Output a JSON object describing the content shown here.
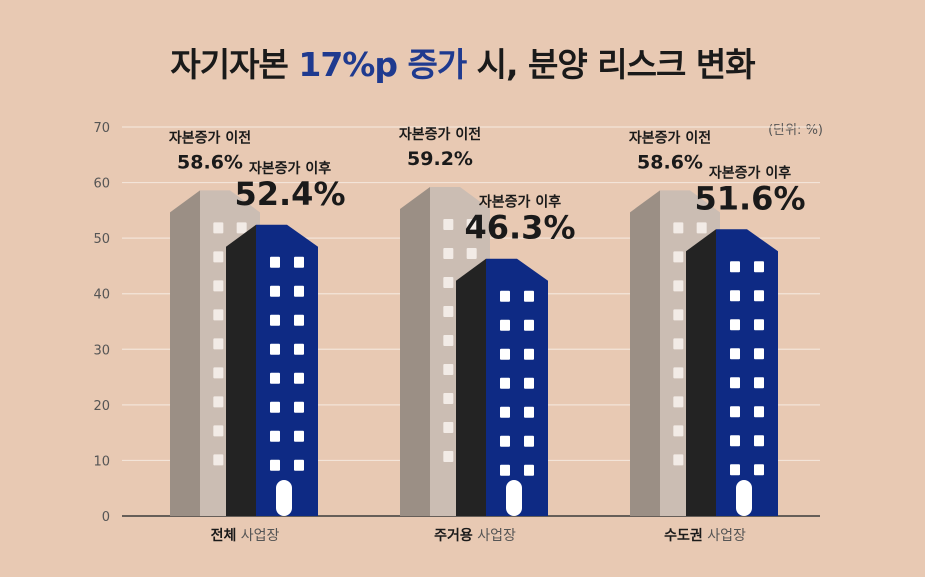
{
  "title": {
    "part1": "자기자본 ",
    "highlight": "17%p 증가",
    "part2": " 시, 분양 리스크 변화"
  },
  "unit_label": "(단위: %)",
  "colors": {
    "background": "#e8c9b3",
    "before_building_front": "#cbbdb3",
    "before_building_side": "#9b8f85",
    "after_building_front": "#0e2a84",
    "after_building_side": "#232323",
    "title_highlight": "#1f3a8f"
  },
  "chart_data": {
    "type": "bar",
    "title": "자기자본 17%p 증가 시, 분양 리스크 변화",
    "unit": "(단위: %)",
    "ylim": [
      0,
      70
    ],
    "yticks": [
      0,
      10,
      20,
      30,
      40,
      50,
      60,
      70
    ],
    "grid": true,
    "categories": [
      {
        "bold": "전체",
        "light": "사업장"
      },
      {
        "bold": "주거용",
        "light": "사업장"
      },
      {
        "bold": "수도권",
        "light": "사업장"
      }
    ],
    "series": [
      {
        "name": "자본증가 이전",
        "values": [
          58.6,
          59.2,
          58.6
        ],
        "labels": [
          "58.6%",
          "59.2%",
          "58.6%"
        ]
      },
      {
        "name": "자본증가 이후",
        "values": [
          52.4,
          46.3,
          51.6
        ],
        "labels": [
          "52.4%",
          "46.3%",
          "51.6%"
        ]
      }
    ]
  }
}
